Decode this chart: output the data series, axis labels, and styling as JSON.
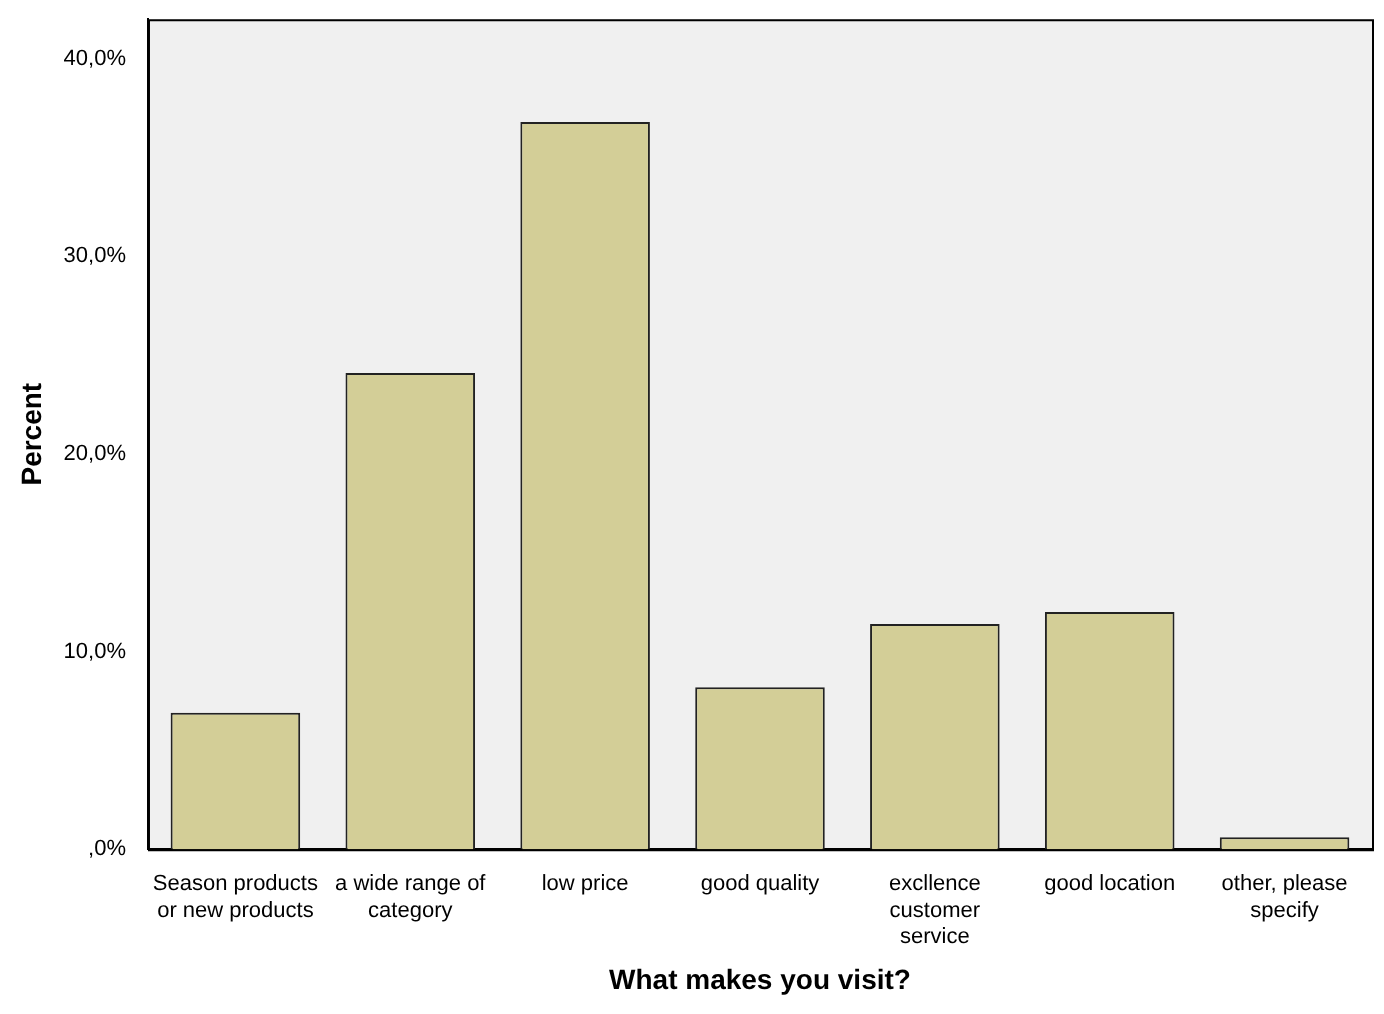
{
  "chart_data": {
    "type": "bar",
    "xlabel": "What makes you visit?",
    "ylabel": "Percent",
    "categories": [
      "Season products or new products",
      "a wide range of category",
      "low price",
      "good quality",
      "excllence customer service",
      "good location",
      "other, please specify"
    ],
    "values": [
      6.9,
      24.1,
      36.8,
      8.2,
      11.4,
      12.0,
      0.6
    ],
    "color": "#d3ce97",
    "ylim": [
      0,
      42
    ],
    "yticks": [
      {
        "value": 0,
        "label": ",0%"
      },
      {
        "value": 10,
        "label": "10,0%"
      },
      {
        "value": 20,
        "label": "20,0%"
      },
      {
        "value": 30,
        "label": "30,0%"
      },
      {
        "value": 40,
        "label": "40,0%"
      }
    ],
    "grid": false,
    "legend": false
  }
}
